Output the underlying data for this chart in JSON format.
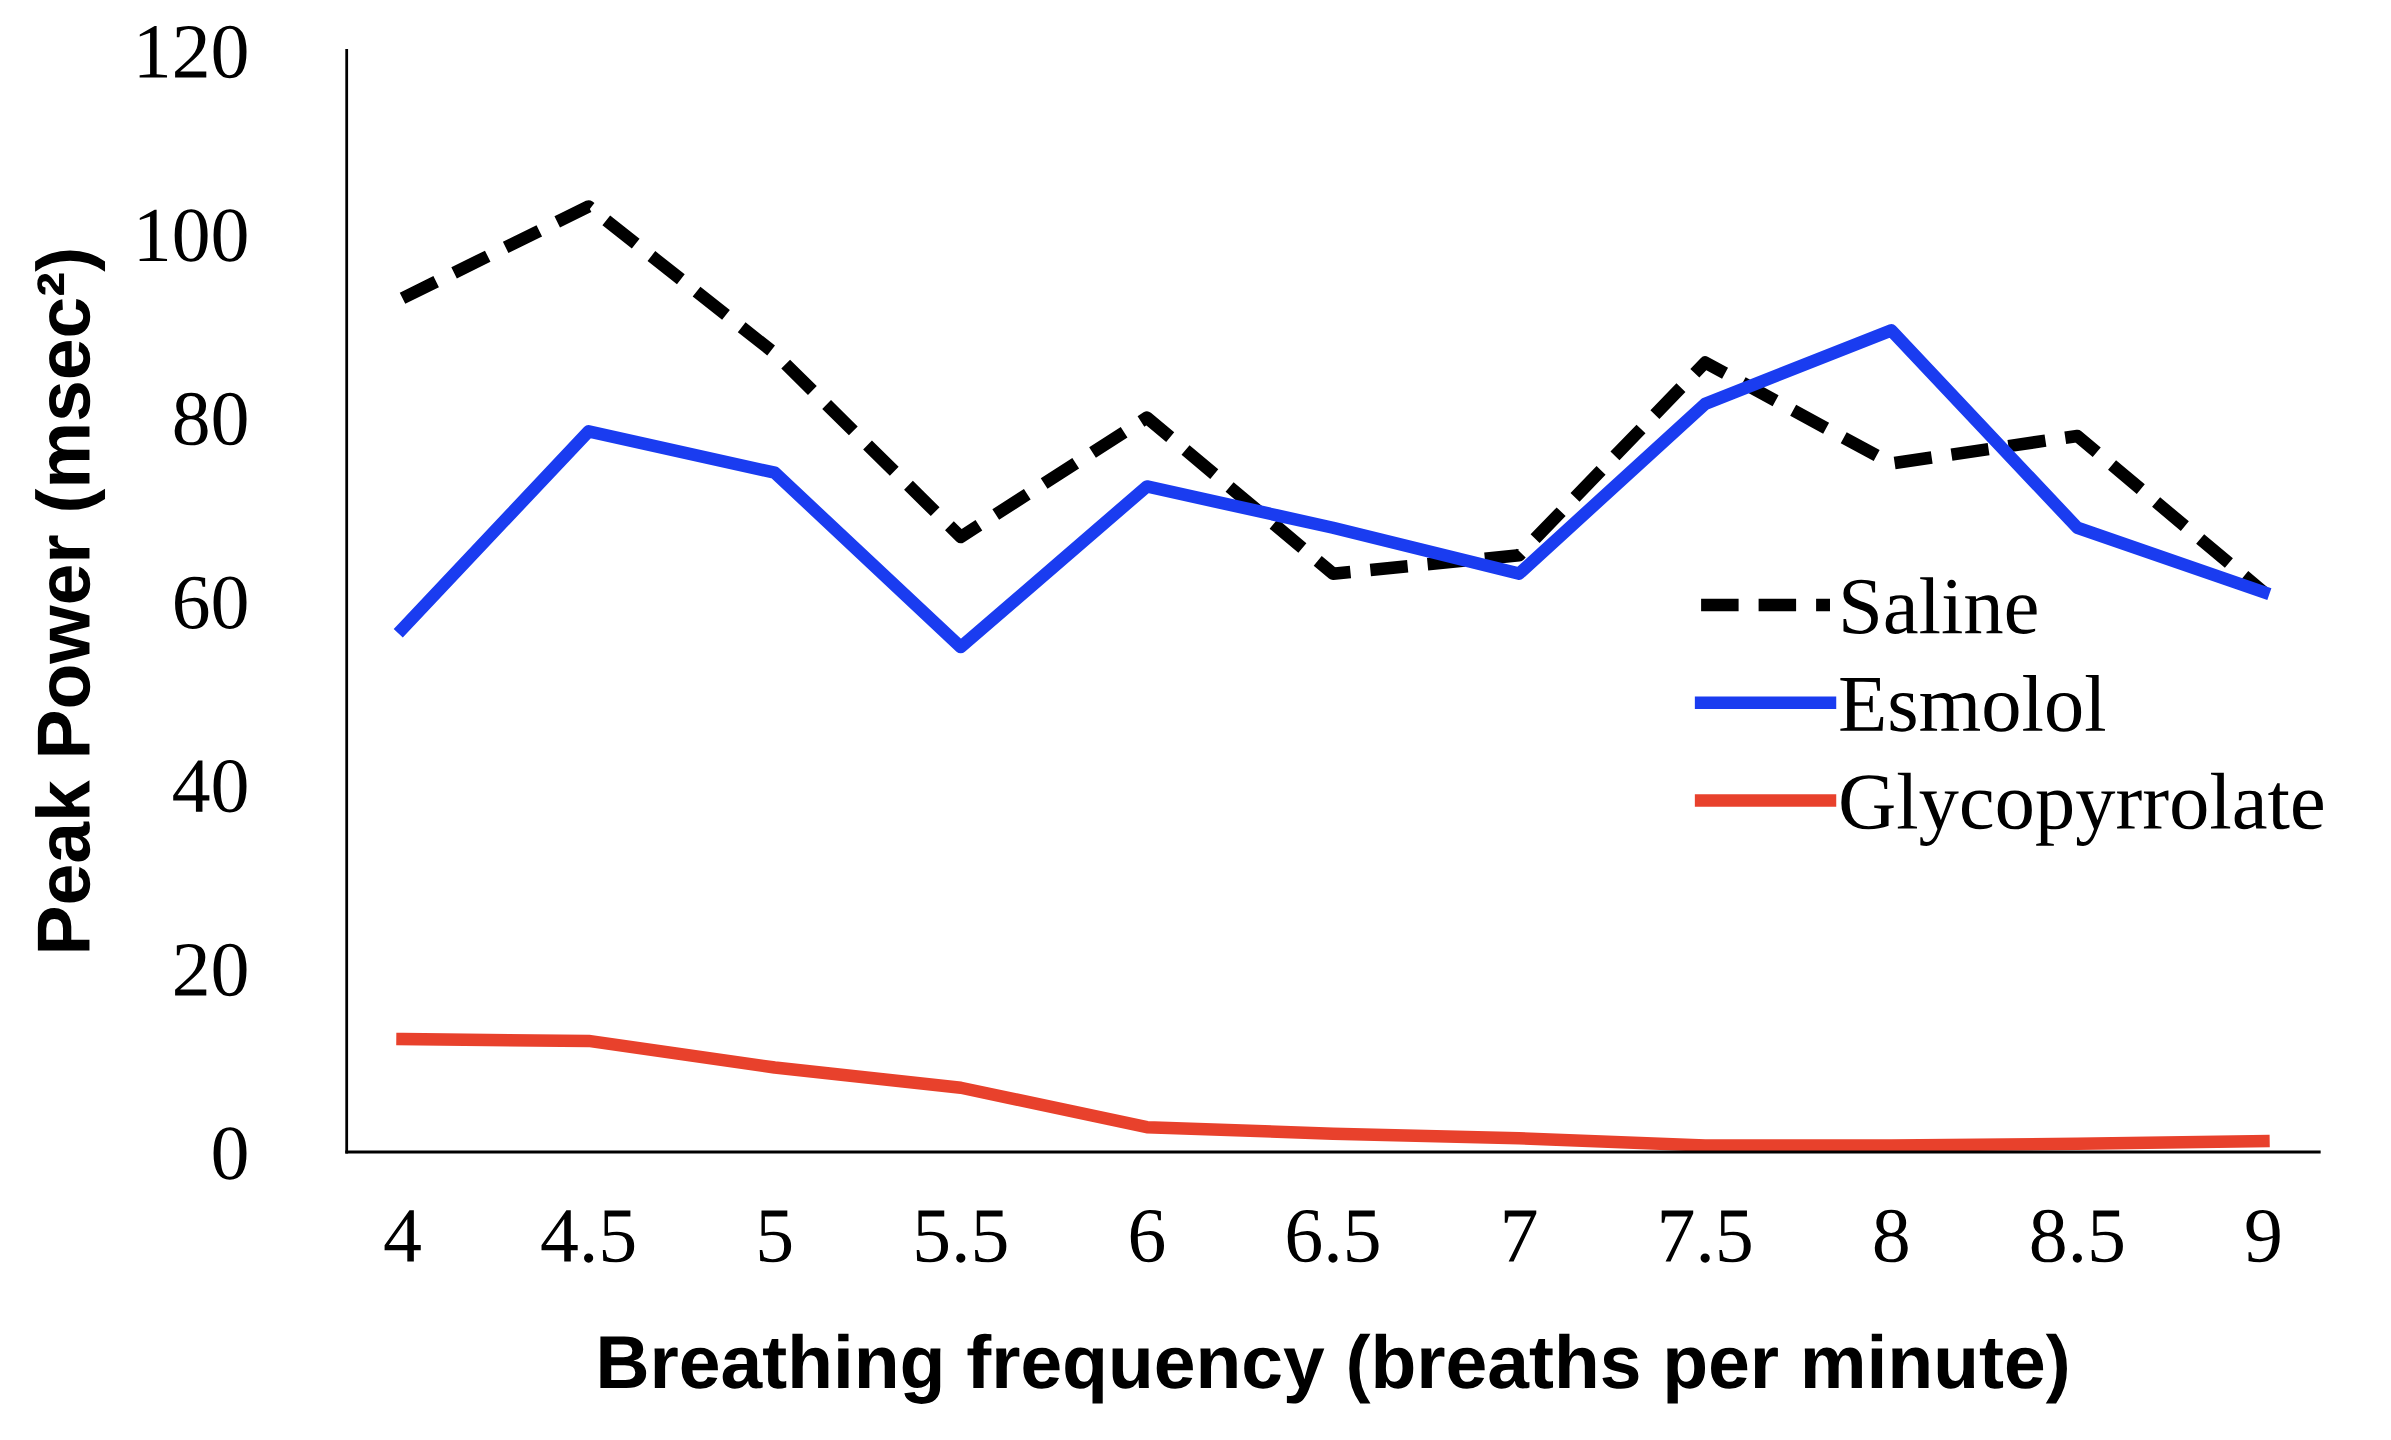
{
  "chart_data": {
    "type": "line",
    "xlabel": "Breathing frequency (breaths per minute)",
    "ylabel": "Peak Power (msec²)",
    "categories": [
      "4",
      "4.5",
      "5",
      "5.5",
      "6",
      "6.5",
      "7",
      "7.5",
      "8",
      "8.5",
      "9"
    ],
    "ylim": [
      0,
      120
    ],
    "yticks": [
      0,
      20,
      40,
      60,
      80,
      100,
      120
    ],
    "grid": false,
    "legend": "right",
    "marker": "none",
    "series": [
      {
        "name": "Saline",
        "color": "#000000",
        "line_style": "dashed",
        "values": [
          93,
          103,
          87,
          67,
          80,
          63,
          65,
          86,
          75,
          78,
          61
        ]
      },
      {
        "name": "Esmolol",
        "color": "#1a3cf0",
        "line_style": "solid",
        "values": [
          57,
          78.5,
          74,
          55,
          72.5,
          68,
          63,
          81.5,
          89.5,
          68,
          61
        ]
      },
      {
        "name": "Glycopyrrolate",
        "color": "#e8412c",
        "line_style": "solid",
        "values": [
          12.3,
          12.1,
          9.2,
          7,
          2.7,
          2,
          1.5,
          0.7,
          0.7,
          0.9,
          1.2
        ]
      }
    ]
  }
}
